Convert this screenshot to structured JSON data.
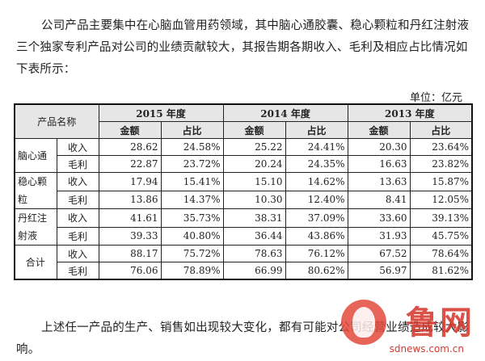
{
  "intro": "公司产品主要集中在心脑血管用药领域，其中脑心通胶囊、稳心颗粒和丹红注射液三个独家专利产品对公司的业绩贡献较大，其报告期各期收入、毛利及相应占比情况如下表所示：",
  "unit": "单位：亿元",
  "table": {
    "corner": "产品名称",
    "years": [
      "2015 年度",
      "2014 年度",
      "2013 年度"
    ],
    "sub_headers": [
      "金额",
      "占比"
    ],
    "products": [
      {
        "name": "脑心通",
        "rows": [
          {
            "kind": "收入",
            "values": [
              "28.62",
              "24.58%",
              "25.22",
              "24.41%",
              "20.30",
              "23.64%"
            ]
          },
          {
            "kind": "毛利",
            "values": [
              "22.87",
              "23.72%",
              "20.24",
              "24.35%",
              "16.63",
              "23.82%"
            ]
          }
        ]
      },
      {
        "name": "稳心颗粒",
        "rows": [
          {
            "kind": "收入",
            "values": [
              "17.94",
              "15.41%",
              "15.10",
              "14.62%",
              "13.63",
              "15.87%"
            ]
          },
          {
            "kind": "毛利",
            "values": [
              "13.86",
              "14.37%",
              "10.30",
              "12.40%",
              "8.41",
              "12.05%"
            ]
          }
        ]
      },
      {
        "name": "丹红注射液",
        "rows": [
          {
            "kind": "收入",
            "values": [
              "41.61",
              "35.73%",
              "38.31",
              "37.09%",
              "33.60",
              "39.13%"
            ]
          },
          {
            "kind": "毛利",
            "values": [
              "39.33",
              "40.80%",
              "36.44",
              "43.86%",
              "31.93",
              "45.75%"
            ]
          }
        ]
      }
    ],
    "total": {
      "name": "合计",
      "rows": [
        {
          "kind": "收入",
          "values": [
            "88.17",
            "75.72%",
            "78.63",
            "76.12%",
            "67.52",
            "78.64%"
          ]
        },
        {
          "kind": "毛利",
          "values": [
            "76.06",
            "78.89%",
            "66.99",
            "80.62%",
            "56.97",
            "81.62%"
          ]
        }
      ]
    }
  },
  "outro": "上述任一产品的生产、销售如出现较大变化，都有可能对公司经营业绩造成较大影响。",
  "watermark": {
    "brand": "鲁网",
    "url": "sdnews.com.cn",
    "color": "#d83a2e"
  }
}
